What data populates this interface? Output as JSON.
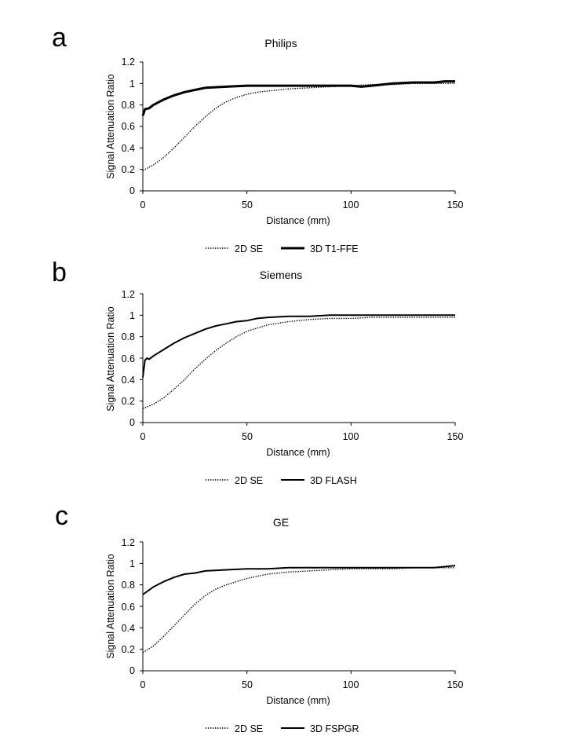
{
  "chart_data": [
    {
      "type": "line",
      "panel": "a",
      "title": "Philips",
      "xlabel": "Distance (mm)",
      "ylabel": "Signal Attenuation Ratio",
      "xlim": [
        0,
        150
      ],
      "ylim": [
        0,
        1.2
      ],
      "xticks": [
        "0",
        "50",
        "100",
        "150"
      ],
      "yticks": [
        "0",
        "0.2",
        "0.4",
        "0.6",
        "0.8",
        "1",
        "1.2"
      ],
      "legend": "bottom",
      "series": [
        {
          "name": "2D SE",
          "style": "dotted",
          "x": [
            0,
            5,
            10,
            15,
            20,
            25,
            30,
            35,
            40,
            45,
            50,
            55,
            60,
            70,
            80,
            90,
            100,
            110,
            120,
            130,
            140,
            150
          ],
          "y": [
            0.19,
            0.24,
            0.31,
            0.4,
            0.5,
            0.6,
            0.69,
            0.77,
            0.83,
            0.87,
            0.9,
            0.92,
            0.93,
            0.95,
            0.96,
            0.97,
            0.98,
            0.99,
            0.99,
            1.0,
            1.0,
            1.0
          ]
        },
        {
          "name": "3D T1-FFE",
          "style": "solid-thick",
          "x": [
            0,
            1,
            3,
            5,
            10,
            15,
            20,
            25,
            30,
            40,
            50,
            60,
            70,
            80,
            90,
            100,
            105,
            110,
            120,
            130,
            140,
            145,
            150
          ],
          "y": [
            0.7,
            0.76,
            0.77,
            0.8,
            0.85,
            0.89,
            0.92,
            0.94,
            0.96,
            0.97,
            0.98,
            0.98,
            0.98,
            0.98,
            0.98,
            0.98,
            0.97,
            0.98,
            1.0,
            1.01,
            1.01,
            1.02,
            1.02
          ]
        }
      ]
    },
    {
      "type": "line",
      "panel": "b",
      "title": "Siemens",
      "xlabel": "Distance (mm)",
      "ylabel": "Signal Attenuation Ratio",
      "xlim": [
        0,
        150
      ],
      "ylim": [
        0,
        1.2
      ],
      "xticks": [
        "0",
        "50",
        "100",
        "150"
      ],
      "yticks": [
        "0",
        "0.2",
        "0.4",
        "0.6",
        "0.8",
        "1",
        "1.2"
      ],
      "legend": "bottom",
      "series": [
        {
          "name": "2D SE",
          "style": "dotted",
          "x": [
            0,
            5,
            10,
            15,
            20,
            25,
            30,
            35,
            40,
            45,
            50,
            55,
            60,
            70,
            80,
            90,
            100,
            110,
            120,
            130,
            140,
            150
          ],
          "y": [
            0.13,
            0.17,
            0.23,
            0.31,
            0.4,
            0.5,
            0.59,
            0.67,
            0.74,
            0.8,
            0.85,
            0.88,
            0.91,
            0.94,
            0.96,
            0.97,
            0.97,
            0.98,
            0.98,
            0.98,
            0.98,
            0.98
          ]
        },
        {
          "name": "3D FLASH",
          "style": "solid",
          "x": [
            0,
            1,
            2,
            3,
            5,
            10,
            15,
            20,
            25,
            30,
            35,
            40,
            45,
            50,
            55,
            60,
            70,
            80,
            90,
            100,
            110,
            120,
            130,
            140,
            150
          ],
          "y": [
            0.42,
            0.58,
            0.6,
            0.59,
            0.62,
            0.68,
            0.74,
            0.79,
            0.83,
            0.87,
            0.9,
            0.92,
            0.94,
            0.95,
            0.97,
            0.98,
            0.99,
            0.99,
            1.0,
            1.0,
            1.0,
            1.0,
            1.0,
            1.0,
            1.0
          ]
        }
      ]
    },
    {
      "type": "line",
      "panel": "c",
      "title": "GE",
      "xlabel": "Distance (mm)",
      "ylabel": "Signal Attenuation Ratio",
      "xlim": [
        0,
        150
      ],
      "ylim": [
        0,
        1.2
      ],
      "xticks": [
        "0",
        "50",
        "100",
        "150"
      ],
      "yticks": [
        "0",
        "0.2",
        "0.4",
        "0.6",
        "0.8",
        "1",
        "1.2"
      ],
      "legend": "bottom",
      "series": [
        {
          "name": "2D SE",
          "style": "dotted",
          "x": [
            0,
            5,
            10,
            15,
            20,
            25,
            30,
            35,
            40,
            45,
            50,
            55,
            60,
            70,
            80,
            90,
            100,
            110,
            120,
            130,
            140,
            150
          ],
          "y": [
            0.17,
            0.23,
            0.32,
            0.42,
            0.52,
            0.62,
            0.7,
            0.76,
            0.8,
            0.83,
            0.86,
            0.88,
            0.9,
            0.92,
            0.93,
            0.94,
            0.95,
            0.95,
            0.95,
            0.96,
            0.96,
            0.96
          ]
        },
        {
          "name": "3D FSPGR",
          "style": "solid",
          "x": [
            0,
            5,
            10,
            15,
            20,
            25,
            30,
            40,
            50,
            60,
            70,
            80,
            90,
            100,
            110,
            120,
            130,
            140,
            150
          ],
          "y": [
            0.71,
            0.78,
            0.83,
            0.87,
            0.9,
            0.91,
            0.93,
            0.94,
            0.95,
            0.95,
            0.96,
            0.96,
            0.96,
            0.96,
            0.96,
            0.96,
            0.96,
            0.96,
            0.98
          ]
        }
      ]
    }
  ]
}
